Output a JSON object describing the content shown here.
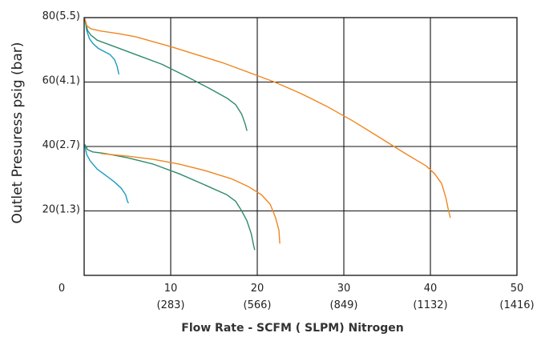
{
  "chart_data": {
    "type": "line",
    "xlabel": "Flow Rate - SCFM ( SLPM) Nitrogen",
    "ylabel": "Outlet Presuress psig (bar)",
    "xlim": [
      0,
      50
    ],
    "ylim": [
      0,
      80
    ],
    "grid": true,
    "x_ticks": [
      {
        "value": 0,
        "label": "0",
        "sub": ""
      },
      {
        "value": 10,
        "label": "10",
        "sub": "(283)"
      },
      {
        "value": 20,
        "label": "20",
        "sub": "(566)"
      },
      {
        "value": 30,
        "label": "30",
        "sub": "(849)"
      },
      {
        "value": 40,
        "label": "40",
        "sub": "(1132)"
      },
      {
        "value": 50,
        "label": "50",
        "sub": "(1416)"
      }
    ],
    "y_ticks": [
      {
        "value": 20,
        "label": "20(1.3)"
      },
      {
        "value": 40,
        "label": "40(2.7)"
      },
      {
        "value": 60,
        "label": "60(4.1)"
      },
      {
        "value": 80,
        "label": "80(5.5)"
      }
    ],
    "series": [
      {
        "color": "#1b9bc4",
        "points": [
          [
            0.1,
            79.5
          ],
          [
            0.3,
            76
          ],
          [
            0.6,
            73.5
          ],
          [
            1.0,
            72
          ],
          [
            1.6,
            70.5
          ],
          [
            2.3,
            69.5
          ],
          [
            3.0,
            68.5
          ],
          [
            3.5,
            67
          ],
          [
            3.8,
            65
          ],
          [
            4.0,
            62.5
          ]
        ]
      },
      {
        "color": "#2e8b6a",
        "points": [
          [
            0.1,
            79
          ],
          [
            0.4,
            76
          ],
          [
            0.8,
            74.5
          ],
          [
            1.5,
            73
          ],
          [
            3,
            71.5
          ],
          [
            6,
            68.5
          ],
          [
            9,
            65.5
          ],
          [
            12,
            61.5
          ],
          [
            14.5,
            58
          ],
          [
            16.5,
            55
          ],
          [
            17.5,
            53
          ],
          [
            18.2,
            50
          ],
          [
            18.6,
            47
          ],
          [
            18.8,
            45
          ]
        ]
      },
      {
        "color": "#f0861e",
        "points": [
          [
            0.1,
            79.5
          ],
          [
            0.3,
            77.5
          ],
          [
            0.8,
            76.5
          ],
          [
            2,
            75.8
          ],
          [
            4,
            75
          ],
          [
            6,
            74
          ],
          [
            8,
            72.5
          ],
          [
            10,
            71
          ],
          [
            13,
            68.5
          ],
          [
            16,
            66
          ],
          [
            19,
            63
          ],
          [
            22,
            60
          ],
          [
            25,
            56.5
          ],
          [
            28,
            52.5
          ],
          [
            31,
            48
          ],
          [
            34,
            43
          ],
          [
            37,
            38
          ],
          [
            39.5,
            34
          ],
          [
            40.5,
            31.5
          ],
          [
            41.3,
            28.5
          ],
          [
            41.8,
            24
          ],
          [
            42.1,
            20
          ],
          [
            42.3,
            18
          ]
        ]
      },
      {
        "color": "#1b9bc4",
        "points": [
          [
            0.1,
            40
          ],
          [
            0.3,
            37.5
          ],
          [
            0.7,
            35.5
          ],
          [
            1.5,
            33
          ],
          [
            2.5,
            31
          ],
          [
            3.5,
            29
          ],
          [
            4.3,
            27
          ],
          [
            4.8,
            25
          ],
          [
            5.0,
            23
          ],
          [
            5.1,
            22.5
          ]
        ]
      },
      {
        "color": "#2e8b6a",
        "points": [
          [
            0.1,
            40.5
          ],
          [
            0.4,
            39
          ],
          [
            1,
            38.3
          ],
          [
            2.5,
            37.8
          ],
          [
            5,
            36.5
          ],
          [
            8,
            34.5
          ],
          [
            11,
            31.5
          ],
          [
            14,
            28
          ],
          [
            16.5,
            25
          ],
          [
            17.5,
            23
          ],
          [
            18.2,
            20
          ],
          [
            18.8,
            17
          ],
          [
            19.3,
            13
          ],
          [
            19.6,
            9
          ],
          [
            19.7,
            8
          ]
        ]
      },
      {
        "color": "#f0861e",
        "points": [
          [
            2,
            37.8
          ],
          [
            5,
            37
          ],
          [
            8,
            36
          ],
          [
            11,
            34.5
          ],
          [
            14,
            32.5
          ],
          [
            17,
            30
          ],
          [
            19,
            27.5
          ],
          [
            20.5,
            25
          ],
          [
            21.5,
            22
          ],
          [
            22.1,
            18
          ],
          [
            22.5,
            14
          ],
          [
            22.6,
            10
          ]
        ]
      }
    ]
  }
}
